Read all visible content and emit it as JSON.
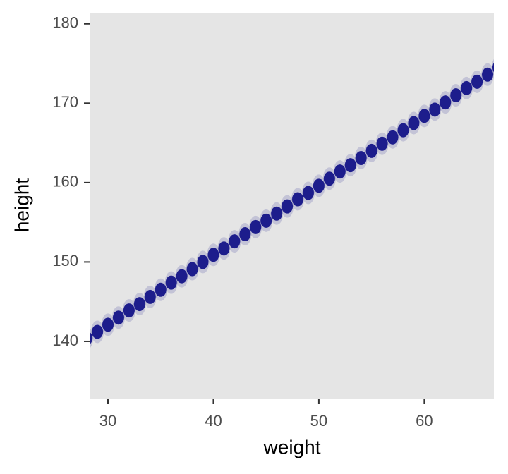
{
  "chart_data": {
    "type": "scatter",
    "x_label": "weight",
    "y_label": "height",
    "x": [
      28,
      29,
      30,
      31,
      32,
      33,
      34,
      35,
      36,
      37,
      38,
      39,
      40,
      41,
      42,
      43,
      44,
      45,
      46,
      47,
      48,
      49,
      50,
      51,
      52,
      53,
      54,
      55,
      56,
      57,
      58,
      59,
      60,
      61,
      62,
      63,
      64,
      65,
      66,
      67
    ],
    "series": [
      {
        "color": "#00007f",
        "values": [
          140.4,
          141.2,
          142.1,
          143.0,
          143.9,
          144.7,
          145.6,
          146.5,
          147.4,
          148.2,
          149.1,
          150.0,
          150.9,
          151.7,
          152.6,
          153.5,
          154.4,
          155.2,
          156.1,
          157.0,
          157.9,
          158.7,
          159.6,
          160.5,
          161.4,
          162.2,
          163.1,
          164.0,
          164.9,
          165.7,
          166.6,
          167.5,
          168.4,
          169.2,
          170.1,
          171.0,
          171.9,
          172.7,
          173.6,
          174.5
        ]
      }
    ],
    "xlim": [
      28.26,
      66.6
    ],
    "ylim": [
      132.8,
      181.4
    ],
    "xticks": [
      30,
      40,
      50,
      60
    ],
    "yticks": [
      140,
      150,
      160,
      170,
      180
    ]
  }
}
